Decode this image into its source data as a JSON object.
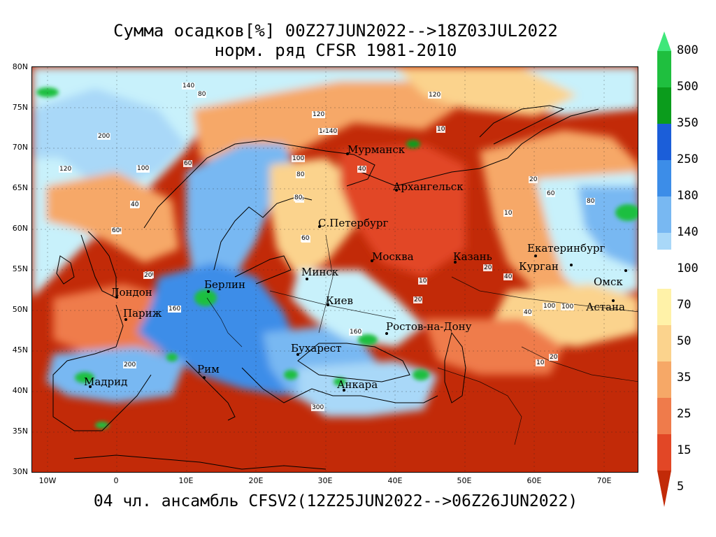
{
  "title": {
    "line1": "Сумма осадков[%] 00Z27JUN2022-->18Z03JUL2022",
    "line2": "норм. ряд CFSR 1981-2010"
  },
  "footer": "04 чл. ансамбль CFSV2(12Z25JUN2022-->06Z26JUN2022)",
  "axes": {
    "lat_labels": [
      "80N",
      "75N",
      "70N",
      "65N",
      "60N",
      "55N",
      "50N",
      "45N",
      "40N",
      "35N",
      "30N"
    ],
    "lon_labels": [
      "10W",
      "0",
      "10E",
      "20E",
      "30E",
      "40E",
      "50E",
      "60E",
      "70E"
    ]
  },
  "cities": [
    "Мурманск",
    "Архангельск",
    "С.Петербург",
    "Москва",
    "Казань",
    "Екатеринбург",
    "Курган",
    "Омск",
    "Астана",
    "Минск",
    "Берлин",
    "Киев",
    "Лондон",
    "Париж",
    "Ростов-на-Дону",
    "Бухарест",
    "Рим",
    "Мадрид",
    "Анкара"
  ],
  "colorbar": {
    "labels": [
      "800",
      "500",
      "350",
      "250",
      "180",
      "140",
      "100",
      "70",
      "50",
      "35",
      "25",
      "15",
      "5"
    ],
    "colors": {
      "c800": "#3fe77a",
      "c500": "#1fbf3f",
      "c350": "#0b9c1c",
      "c300": "#1b5ed9",
      "c250": "#3c8de8",
      "c180": "#78b8f2",
      "c140": "#a9d8f8",
      "c100": "#c8f1fb",
      "c70": "#fff2a8",
      "c50": "#fbd38d",
      "c35": "#f6a867",
      "c25": "#ef7b4b",
      "c15": "#e24726",
      "c5": "#c22a08"
    }
  },
  "contour_labels": [
    "200",
    "140",
    "80",
    "100",
    "60",
    "120",
    "40",
    "10",
    "20",
    "80",
    "100",
    "160",
    "300",
    "40",
    "60",
    "200",
    "120",
    "160",
    "140",
    "80",
    "10",
    "20",
    "40",
    "60",
    "100",
    "120",
    "10",
    "20",
    "40",
    "20",
    "10",
    "80",
    "60",
    "20",
    "40",
    "60",
    "100",
    "120",
    "140",
    "160",
    "20",
    "40",
    "60",
    "80",
    "100"
  ]
}
